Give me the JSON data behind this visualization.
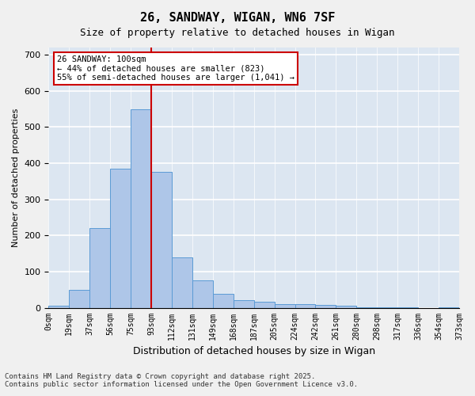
{
  "title1": "26, SANDWAY, WIGAN, WN6 7SF",
  "title2": "Size of property relative to detached houses in Wigan",
  "xlabel": "Distribution of detached houses by size in Wigan",
  "ylabel": "Number of detached properties",
  "bin_labels": [
    "0sqm",
    "19sqm",
    "37sqm",
    "56sqm",
    "75sqm",
    "93sqm",
    "112sqm",
    "131sqm",
    "149sqm",
    "168sqm",
    "187sqm",
    "205sqm",
    "224sqm",
    "242sqm",
    "261sqm",
    "280sqm",
    "298sqm",
    "317sqm",
    "336sqm",
    "354sqm",
    "373sqm"
  ],
  "bar_heights": [
    5,
    50,
    220,
    385,
    550,
    375,
    140,
    75,
    38,
    22,
    17,
    10,
    10,
    8,
    5,
    2,
    2,
    1,
    0,
    1
  ],
  "bar_color": "#aec6e8",
  "bar_edge_color": "#5b9bd5",
  "background_color": "#dce6f1",
  "grid_color": "#ffffff",
  "red_line_x": 5,
  "annotation_title": "26 SANDWAY: 100sqm",
  "annotation_line1": "← 44% of detached houses are smaller (823)",
  "annotation_line2": "55% of semi-detached houses are larger (1,041) →",
  "annotation_box_color": "#ffffff",
  "annotation_border_color": "#cc0000",
  "red_line_color": "#cc0000",
  "footer1": "Contains HM Land Registry data © Crown copyright and database right 2025.",
  "footer2": "Contains public sector information licensed under the Open Government Licence v3.0.",
  "ylim": [
    0,
    720
  ],
  "yticks": [
    0,
    100,
    200,
    300,
    400,
    500,
    600,
    700
  ]
}
